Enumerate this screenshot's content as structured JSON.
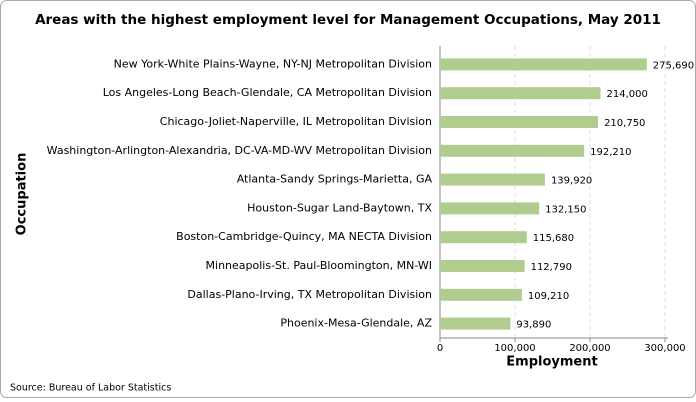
{
  "chart_data": {
    "type": "bar",
    "orientation": "horizontal",
    "title": "Areas with the highest employment level for Management Occupations, May 2011",
    "x_label": "Employment",
    "y_label": "Occupation",
    "source": "Source: Bureau of Labor Statistics",
    "categories": [
      "New York-White Plains-Wayne, NY-NJ Metropolitan Division",
      "Los Angeles-Long Beach-Glendale, CA Metropolitan Division",
      "Chicago-Joliet-Naperville, IL Metropolitan Division",
      "Washington-Arlington-Alexandria, DC-VA-MD-WV Metropolitan Division",
      "Atlanta-Sandy Springs-Marietta, GA",
      "Houston-Sugar Land-Baytown, TX",
      "Boston-Cambridge-Quincy, MA NECTA Division",
      "Minneapolis-St. Paul-Bloomington, MN-WI",
      "Dallas-Plano-Irving, TX Metropolitan Division",
      "Phoenix-Mesa-Glendale, AZ"
    ],
    "values": [
      275690,
      214000,
      210750,
      192210,
      139920,
      132150,
      115680,
      112790,
      109210,
      93890
    ],
    "value_labels": [
      "275,690",
      "214,000",
      "210,750",
      "192,210",
      "139,920",
      "132,150",
      "115,680",
      "112,790",
      "109,210",
      "93,890"
    ],
    "color": "#b0cc8e",
    "xlim": [
      0,
      300000
    ],
    "xticks": [
      0,
      {
        "value": 100000,
        "label": "100,000"
      },
      {
        "value": 200000,
        "label": "200,000"
      },
      {
        "value": 300000,
        "label": "300,000"
      }
    ],
    "grid": true
  }
}
